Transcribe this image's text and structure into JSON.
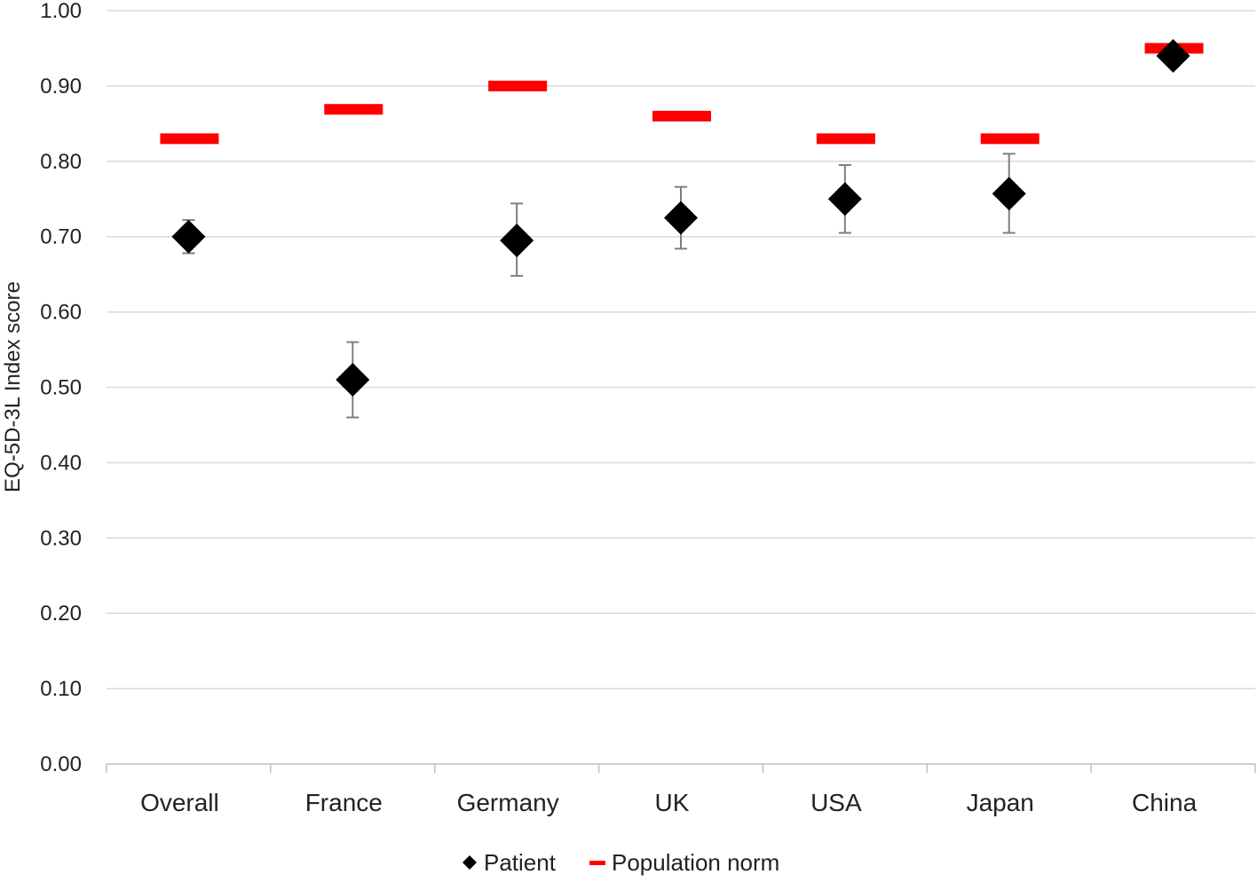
{
  "chart_data": {
    "type": "scatter",
    "title": "",
    "xlabel": "",
    "ylabel": "EQ-5D-3L Index score",
    "ylim": [
      0,
      1
    ],
    "y_ticks": [
      "0.00",
      "0.10",
      "0.20",
      "0.30",
      "0.40",
      "0.50",
      "0.60",
      "0.70",
      "0.80",
      "0.90",
      "1.00"
    ],
    "categories": [
      "Overall",
      "France",
      "Germany",
      "UK",
      "USA",
      "Japan",
      "China"
    ],
    "grid": true,
    "legend_position": "bottom",
    "series": [
      {
        "name": "Patient",
        "marker": "diamond",
        "color": "#000000",
        "values": [
          0.7,
          0.51,
          0.695,
          0.725,
          0.75,
          0.757,
          0.94
        ],
        "error_low": [
          0.678,
          0.46,
          0.648,
          0.684,
          0.705,
          0.705,
          0.94
        ],
        "error_high": [
          0.722,
          0.56,
          0.744,
          0.766,
          0.795,
          0.81,
          0.94
        ]
      },
      {
        "name": "Population norm",
        "marker": "dash",
        "color": "#ff0000",
        "values": [
          0.83,
          0.869,
          0.9,
          0.86,
          0.83,
          0.83,
          0.95
        ]
      }
    ]
  }
}
